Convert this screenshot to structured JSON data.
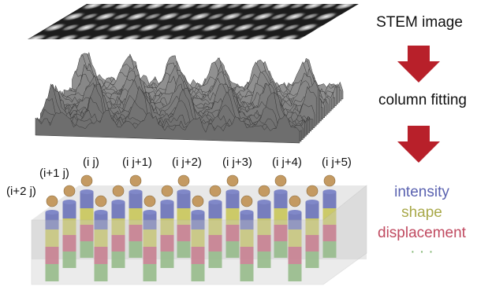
{
  "steps": [
    "STEM image",
    "column fitting"
  ],
  "column_labels": [
    "(i+2 j)",
    "(i+1 j)",
    "(i j)",
    "(i j+1)",
    "(i j+2)",
    "(i j+3)",
    "(i j+4)",
    "(i j+5)"
  ],
  "properties": [
    "intensity",
    "shape",
    "displacement",
    "· · ·"
  ]
}
